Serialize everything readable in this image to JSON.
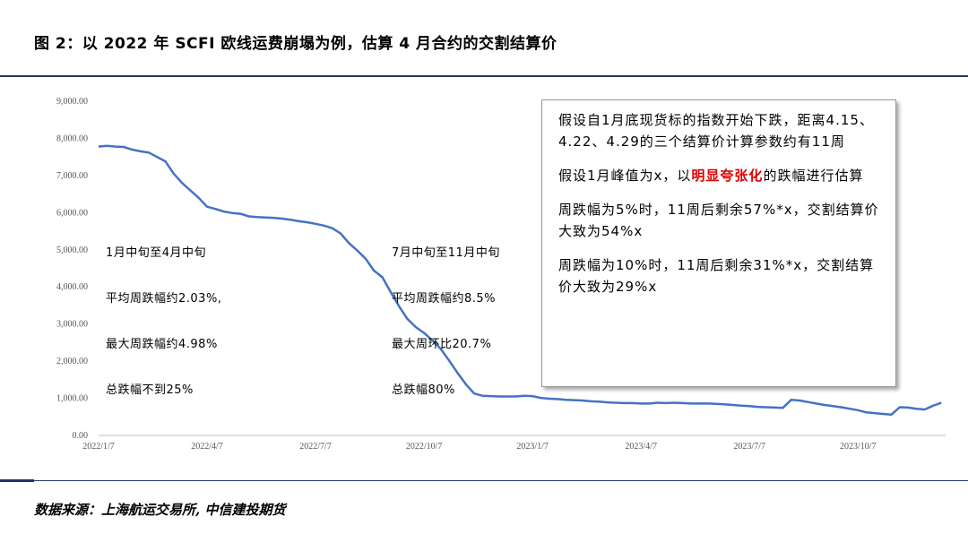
{
  "title": "图 2：以 2022 年 SCFI 欧线运费崩塌为例，估算 4 月合约的交割结算价",
  "source": "数据来源：上海航运交易所, 中信建投期货",
  "annotations": {
    "first": [
      "1月中旬至4月中旬",
      "平均周跌幅约2.03%,",
      "最大周跌幅约4.98%",
      "总跌幅不到25%"
    ],
    "second": [
      "7月中旬至11月中旬",
      "平均周跌幅约8.5%",
      "最大周环比20.7%",
      "总跌幅80%"
    ]
  },
  "note": {
    "p1": "假设自1月底现货标的指数开始下跌，距离4.15、4.22、4.29的三个结算价计算参数约有11周",
    "p2_pre": "假设1月峰值为x，以",
    "p2_hl": "明显夸张化",
    "p2_post": "的跌幅进行估算",
    "p3": "周跌幅为5%时，11周后剩余57%*x，交割结算价大致为54%x",
    "p4": "周跌幅为10%时，11周后剩余31%*x，交割结算价大致为29%x"
  },
  "colors": {
    "line": "#4472c4",
    "highlight": "#e00000",
    "rule": "#1f3864"
  },
  "chart_data": {
    "type": "line",
    "title": "",
    "xlabel": "",
    "ylabel": "",
    "ylim": [
      0,
      9000
    ],
    "yticks": [
      0,
      1000,
      2000,
      3000,
      4000,
      5000,
      6000,
      7000,
      8000,
      9000
    ],
    "ytick_labels": [
      "0.00",
      "1,000.00",
      "2,000.00",
      "3,000.00",
      "4,000.00",
      "5,000.00",
      "6,000.00",
      "7,000.00",
      "8,000.00",
      "9,000.00"
    ],
    "xticks": [
      {
        "week": 0,
        "label": "2022/1/7"
      },
      {
        "week": 13,
        "label": "2022/4/7"
      },
      {
        "week": 26,
        "label": "2022/7/7"
      },
      {
        "week": 39,
        "label": "2022/10/7"
      },
      {
        "week": 52,
        "label": "2023/1/7"
      },
      {
        "week": 65,
        "label": "2023/4/7"
      },
      {
        "week": 78,
        "label": "2023/7/7"
      },
      {
        "week": 91,
        "label": "2023/10/7"
      }
    ],
    "week_range": [
      0,
      101.5
    ],
    "series": [
      {
        "name": "SCFI 欧线",
        "weeks": [
          0,
          1,
          2,
          3,
          4,
          5,
          6,
          7,
          8,
          9,
          10,
          11,
          12,
          13,
          14,
          15,
          16,
          17,
          18,
          19,
          20,
          21,
          22,
          23,
          24,
          25,
          26,
          27,
          28,
          29,
          30,
          31,
          32,
          33,
          34,
          35,
          36,
          37,
          38,
          39,
          40,
          41,
          42,
          43,
          44,
          45,
          46,
          47,
          48,
          49,
          50,
          51,
          52,
          53,
          54,
          55,
          56,
          57,
          58,
          59,
          60,
          61,
          62,
          63,
          64,
          65,
          66,
          67,
          68,
          69,
          70,
          71,
          72,
          73,
          74,
          75,
          76,
          77,
          78,
          79,
          80,
          81,
          82,
          83,
          84,
          85,
          86,
          87,
          88,
          89,
          90,
          91,
          92,
          93,
          94,
          95,
          96,
          97,
          98,
          99,
          100,
          101
        ],
        "values": [
          7780,
          7800,
          7780,
          7770,
          7700,
          7650,
          7620,
          7500,
          7380,
          7050,
          6800,
          6600,
          6400,
          6160,
          6100,
          6030,
          5990,
          5970,
          5900,
          5880,
          5870,
          5860,
          5840,
          5810,
          5770,
          5740,
          5700,
          5650,
          5580,
          5440,
          5180,
          4980,
          4760,
          4440,
          4260,
          3860,
          3480,
          3140,
          2920,
          2760,
          2560,
          2330,
          2020,
          1690,
          1380,
          1130,
          1070,
          1060,
          1050,
          1050,
          1050,
          1070,
          1060,
          1010,
          990,
          980,
          960,
          950,
          940,
          920,
          910,
          890,
          880,
          870,
          870,
          860,
          860,
          880,
          870,
          880,
          870,
          860,
          860,
          860,
          850,
          840,
          820,
          800,
          790,
          770,
          760,
          750,
          740,
          960,
          940,
          900,
          860,
          820,
          790,
          760,
          720,
          680,
          620,
          600,
          580,
          560,
          760,
          750,
          720,
          700,
          800,
          880
        ]
      }
    ]
  }
}
